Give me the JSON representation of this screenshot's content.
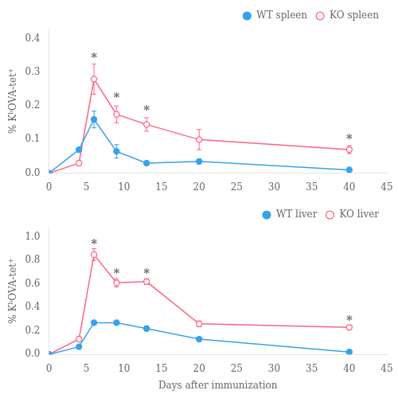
{
  "chart_data": [
    {
      "type": "line",
      "x": [
        0,
        4,
        6,
        9,
        13,
        20,
        40
      ],
      "series": [
        {
          "name": "WT spleen",
          "marker": "filled circle",
          "line_style": "solid",
          "values": [
            0,
            0.07,
            0.16,
            0.065,
            0.03,
            0.035,
            0.01
          ],
          "errors": [
            0,
            0.005,
            0.025,
            0.02,
            0.005,
            0.007,
            0.005
          ]
        },
        {
          "name": "KO spleen",
          "marker": "open circle",
          "line_style": "solid",
          "values": [
            0,
            0.03,
            0.28,
            0.175,
            0.145,
            0.1,
            0.07
          ],
          "errors": [
            0,
            0.008,
            0.045,
            0.025,
            0.02,
            0.03,
            0.012
          ]
        }
      ],
      "ylabel": "% KᵇOVA-tet⁺",
      "xlim": [
        0,
        45
      ],
      "xticks": [
        0,
        5,
        10,
        15,
        20,
        25,
        30,
        35,
        40,
        45
      ],
      "ylim": [
        0,
        0.43
      ],
      "yticks": [
        {
          "value": 0,
          "label": "0.0"
        },
        0.1,
        0.2,
        0.3,
        0.4
      ],
      "annotations": [
        {
          "x": 6,
          "y": 0.335,
          "text": "*"
        },
        {
          "x": 9,
          "y": 0.215,
          "text": "*"
        },
        {
          "x": 13,
          "y": 0.178,
          "text": "*"
        },
        {
          "x": 40,
          "y": 0.093,
          "text": "*"
        }
      ],
      "legend": "upper right",
      "grid": false
    },
    {
      "type": "line",
      "x": [
        0,
        4,
        6,
        9,
        13,
        20,
        40
      ],
      "series": [
        {
          "name": "WT liver",
          "marker": "filled circle",
          "line_style": "solid",
          "values": [
            0,
            0.065,
            0.27,
            0.27,
            0.22,
            0.13,
            0.02
          ],
          "errors": [
            0,
            0.01,
            0.015,
            0.015,
            0.02,
            0.015,
            0.015
          ]
        },
        {
          "name": "KO liver",
          "marker": "open circle",
          "line_style": "solid",
          "values": [
            0,
            0.13,
            0.85,
            0.61,
            0.62,
            0.26,
            0.23
          ],
          "errors": [
            0,
            0.02,
            0.05,
            0.035,
            0.025,
            0.025,
            0.02
          ]
        }
      ],
      "ylabel": "% KᵇOVA-tet⁺",
      "xlabel": "Days after immunization",
      "xlim": [
        0,
        45
      ],
      "xticks": [
        0,
        5,
        10,
        15,
        20,
        25,
        30,
        35,
        40,
        45
      ],
      "ylim": [
        0,
        1.08
      ],
      "yticks": [
        {
          "value": 0,
          "label": "0.0"
        },
        0.2,
        0.4,
        0.6,
        0.8,
        {
          "value": 1.0,
          "label": "1.0"
        }
      ],
      "annotations": [
        {
          "x": 6,
          "y": 0.915,
          "text": "*"
        },
        {
          "x": 9,
          "y": 0.66,
          "text": "*"
        },
        {
          "x": 13,
          "y": 0.66,
          "text": "*"
        },
        {
          "x": 40,
          "y": 0.265,
          "text": "*"
        }
      ],
      "legend": "upper right",
      "grid": false
    }
  ]
}
